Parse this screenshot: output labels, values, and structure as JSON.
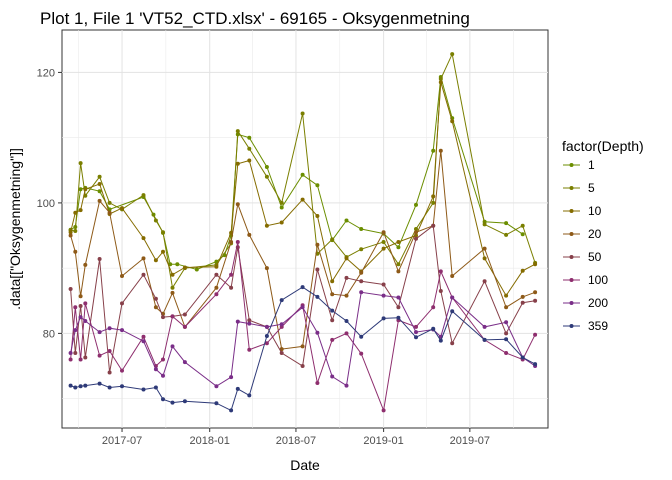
{
  "chart_data": {
    "type": "line",
    "title": "Plot 1, File 1 'VT52_CTD.xlsx' - 69165  -  Oksygenmetning",
    "xlabel": "Date",
    "ylabel": ".data[[\"Oksygenmetning\"]]",
    "x_ticks": [
      "2017-07",
      "2018-01",
      "2018-07",
      "2019-01",
      "2019-07"
    ],
    "y_ticks": [
      80,
      100,
      120
    ],
    "xlim": [
      "2017-02-25",
      "2019-12-12"
    ],
    "ylim": [
      65.5,
      126.5
    ],
    "grid": true,
    "legend": {
      "title": "factor(Depth)",
      "placement": "right"
    },
    "series": [
      {
        "name": "1",
        "color": "#6B8E00",
        "x": [
          "2017-03-15",
          "2017-03-25",
          "2017-04-05",
          "2017-04-15",
          "2017-05-15",
          "2017-06-05",
          "2017-08-15",
          "2017-09-05",
          "2017-09-25",
          "2017-10-10",
          "2017-10-25",
          "2017-12-05",
          "2018-01-15",
          "2018-02-01",
          "2018-02-15",
          "2018-03-01",
          "2018-03-25",
          "2018-05-01",
          "2018-06-01",
          "2018-07-15",
          "2018-08-15",
          "2018-09-15",
          "2018-10-15",
          "2018-11-15",
          "2019-01-01",
          "2019-02-01",
          "2019-03-10",
          "2019-04-15",
          "2019-05-01",
          "2019-05-25",
          "2019-08-01",
          "2019-09-15",
          "2019-10-20"
        ],
        "y": [
          95.9,
          96.3,
          102.1,
          102.3,
          101.8,
          99.0,
          100.9,
          98.2,
          95.4,
          90.6,
          90.6,
          89.8,
          91.0,
          92.0,
          95.0,
          110.5,
          110.0,
          105.5,
          99.3,
          104.3,
          102.7,
          94.3,
          97.3,
          96.0,
          95.3,
          93.2,
          99.7,
          108.0,
          119.3,
          113.0,
          97.1,
          96.9,
          95.2
        ]
      },
      {
        "name": "5",
        "color": "#7A7F00",
        "x": [
          "2017-03-15",
          "2017-03-25",
          "2017-04-05",
          "2017-04-15",
          "2017-05-15",
          "2017-06-05",
          "2017-07-01",
          "2017-08-15",
          "2017-09-10",
          "2017-09-25",
          "2017-10-15",
          "2017-11-10",
          "2018-01-15",
          "2018-02-15",
          "2018-03-01",
          "2018-03-25",
          "2018-05-01",
          "2018-06-01",
          "2018-07-15",
          "2018-08-15",
          "2018-09-15",
          "2018-10-15",
          "2018-11-15",
          "2019-01-01",
          "2019-02-01",
          "2019-03-10",
          "2019-04-15",
          "2019-05-01",
          "2019-05-25",
          "2019-08-01",
          "2019-09-15",
          "2019-10-20",
          "2019-11-15"
        ],
        "y": [
          95.8,
          95.7,
          106.1,
          101.1,
          104.0,
          100.0,
          99.0,
          101.2,
          97.3,
          95.5,
          87.0,
          90.0,
          90.5,
          93.8,
          111.0,
          108.3,
          104.0,
          100.0,
          113.7,
          92.2,
          94.4,
          91.7,
          92.9,
          94.0,
          90.6,
          96.0,
          100.0,
          119.0,
          122.8,
          96.7,
          95.1,
          96.5,
          90.8
        ]
      },
      {
        "name": "10",
        "color": "#856C00",
        "x": [
          "2017-03-15",
          "2017-03-25",
          "2017-04-05",
          "2017-04-15",
          "2017-05-15",
          "2017-06-05",
          "2017-07-01",
          "2017-08-15",
          "2017-09-10",
          "2017-09-25",
          "2017-10-15",
          "2017-11-10",
          "2018-01-15",
          "2018-02-15",
          "2018-03-01",
          "2018-03-25",
          "2018-05-01",
          "2018-06-01",
          "2018-07-15",
          "2018-08-15",
          "2018-09-15",
          "2018-10-15",
          "2018-11-15",
          "2019-01-01",
          "2019-02-01",
          "2019-03-10",
          "2019-04-15",
          "2019-05-01",
          "2019-05-25",
          "2019-08-01",
          "2019-09-15",
          "2019-10-20",
          "2019-11-15"
        ],
        "y": [
          95.5,
          98.5,
          98.9,
          102.1,
          102.9,
          98.3,
          99.2,
          94.6,
          91.2,
          92.5,
          89.0,
          90.1,
          90.2,
          95.4,
          106.0,
          106.5,
          96.5,
          97.0,
          100.5,
          98.0,
          88.0,
          91.5,
          89.5,
          93.0,
          94.0,
          95.0,
          101.0,
          118.5,
          112.5,
          91.5,
          85.8,
          89.6,
          90.6
        ]
      },
      {
        "name": "20",
        "color": "#8E5A18",
        "x": [
          "2017-03-15",
          "2017-03-25",
          "2017-04-05",
          "2017-04-15",
          "2017-05-15",
          "2017-06-05",
          "2017-07-01",
          "2017-08-15",
          "2017-09-10",
          "2017-09-25",
          "2017-10-15",
          "2017-11-10",
          "2018-01-15",
          "2018-02-15",
          "2018-03-01",
          "2018-03-25",
          "2018-05-01",
          "2018-06-01",
          "2018-07-15",
          "2018-08-15",
          "2018-09-15",
          "2018-10-15",
          "2018-11-15",
          "2019-01-01",
          "2019-02-01",
          "2019-03-10",
          "2019-04-15",
          "2019-05-01",
          "2019-05-25",
          "2019-08-01",
          "2019-09-15",
          "2019-10-20",
          "2019-11-15"
        ],
        "y": [
          95.0,
          92.5,
          85.7,
          90.5,
          100.3,
          98.5,
          88.8,
          91.5,
          84.0,
          83.0,
          86.2,
          81.0,
          87.0,
          94.0,
          99.8,
          95.1,
          90.0,
          77.6,
          78.0,
          93.6,
          86.0,
          85.8,
          89.3,
          95.5,
          89.5,
          95.5,
          96.5,
          108.0,
          88.8,
          93.0,
          84.0,
          85.6,
          86.3
        ]
      },
      {
        "name": "50",
        "color": "#87404A",
        "x": [
          "2017-03-15",
          "2017-03-25",
          "2017-04-05",
          "2017-04-15",
          "2017-05-15",
          "2017-06-05",
          "2017-07-01",
          "2017-08-15",
          "2017-09-10",
          "2017-09-25",
          "2017-10-15",
          "2017-11-10",
          "2018-01-15",
          "2018-02-15",
          "2018-03-01",
          "2018-03-25",
          "2018-05-01",
          "2018-06-01",
          "2018-07-15",
          "2018-08-15",
          "2018-09-15",
          "2018-10-15",
          "2018-11-15",
          "2019-01-01",
          "2019-02-01",
          "2019-03-10",
          "2019-04-15",
          "2019-05-01",
          "2019-05-25",
          "2019-08-01",
          "2019-09-15",
          "2019-10-20",
          "2019-11-15"
        ],
        "y": [
          86.8,
          77.0,
          84.2,
          76.3,
          91.4,
          74.0,
          84.6,
          89.0,
          85.3,
          82.5,
          82.6,
          82.9,
          89.0,
          87.0,
          93.2,
          82.0,
          81.0,
          77.0,
          75.0,
          89.8,
          82.0,
          88.5,
          88.0,
          87.5,
          84.0,
          94.5,
          96.5,
          86.5,
          78.5,
          88.0,
          80.0,
          84.7,
          85.0
        ]
      },
      {
        "name": "100",
        "color": "#8E2E6E",
        "x": [
          "2017-03-15",
          "2017-03-25",
          "2017-04-05",
          "2017-04-15",
          "2017-05-15",
          "2017-06-05",
          "2017-07-01",
          "2017-08-15",
          "2017-09-10",
          "2017-09-25",
          "2017-10-15",
          "2017-11-10",
          "2018-01-15",
          "2018-02-15",
          "2018-03-01",
          "2018-03-25",
          "2018-05-01",
          "2018-06-01",
          "2018-07-15",
          "2018-08-15",
          "2018-09-15",
          "2018-10-15",
          "2018-11-15",
          "2019-01-01",
          "2019-02-01",
          "2019-03-10",
          "2019-04-15",
          "2019-05-01",
          "2019-05-25",
          "2019-08-01",
          "2019-09-15",
          "2019-10-20",
          "2019-11-15"
        ],
        "y": [
          76.0,
          84.0,
          76.0,
          84.6,
          76.6,
          77.3,
          74.3,
          79.5,
          75.0,
          76.0,
          82.6,
          81.0,
          86.0,
          89.0,
          94.0,
          77.5,
          78.5,
          81.0,
          84.3,
          72.4,
          79.0,
          80.0,
          76.9,
          68.2,
          82.0,
          81.0,
          84.0,
          89.5,
          85.5,
          79.0,
          77.0,
          76.0,
          79.8
        ]
      },
      {
        "name": "200",
        "color": "#7A2E88",
        "x": [
          "2017-03-15",
          "2017-03-25",
          "2017-04-05",
          "2017-04-15",
          "2017-05-15",
          "2017-06-05",
          "2017-07-01",
          "2017-08-15",
          "2017-09-10",
          "2017-09-25",
          "2017-10-15",
          "2017-11-10",
          "2018-01-15",
          "2018-02-15",
          "2018-03-01",
          "2018-03-25",
          "2018-05-01",
          "2018-06-01",
          "2018-07-15",
          "2018-08-15",
          "2018-09-15",
          "2018-10-15",
          "2018-11-15",
          "2019-01-01",
          "2019-02-01",
          "2019-03-10",
          "2019-04-15",
          "2019-05-01",
          "2019-05-25",
          "2019-08-01",
          "2019-09-15",
          "2019-10-20",
          "2019-11-15"
        ],
        "y": [
          77.0,
          80.5,
          82.5,
          81.9,
          80.2,
          80.8,
          80.5,
          78.8,
          74.5,
          73.5,
          78.0,
          75.6,
          71.9,
          73.3,
          81.8,
          81.5,
          81.0,
          81.4,
          84.0,
          80.1,
          73.4,
          72.0,
          86.3,
          85.8,
          85.5,
          80.2,
          80.6,
          79.5,
          85.5,
          81.0,
          81.7,
          76.3,
          75.0
        ]
      },
      {
        "name": "359",
        "color": "#2E3A78",
        "x": [
          "2017-03-15",
          "2017-03-25",
          "2017-04-05",
          "2017-04-15",
          "2017-05-15",
          "2017-06-05",
          "2017-07-01",
          "2017-08-15",
          "2017-09-10",
          "2017-09-25",
          "2017-10-15",
          "2017-11-10",
          "2018-01-15",
          "2018-02-15",
          "2018-03-01",
          "2018-03-25",
          "2018-05-01",
          "2018-06-01",
          "2018-07-15",
          "2018-08-15",
          "2018-09-15",
          "2018-10-15",
          "2018-11-15",
          "2019-01-01",
          "2019-02-01",
          "2019-03-10",
          "2019-04-15",
          "2019-05-01",
          "2019-05-25",
          "2019-08-01",
          "2019-09-15",
          "2019-10-20",
          "2019-11-15"
        ],
        "y": [
          72.0,
          71.7,
          71.9,
          72.0,
          72.3,
          71.7,
          71.9,
          71.4,
          71.7,
          69.9,
          69.4,
          69.6,
          69.3,
          68.2,
          71.5,
          70.5,
          79.6,
          85.1,
          87.1,
          85.6,
          83.5,
          81.9,
          79.5,
          82.3,
          82.4,
          79.4,
          80.7,
          78.9,
          83.4,
          79.0,
          79.1,
          76.3,
          75.3
        ]
      }
    ]
  }
}
